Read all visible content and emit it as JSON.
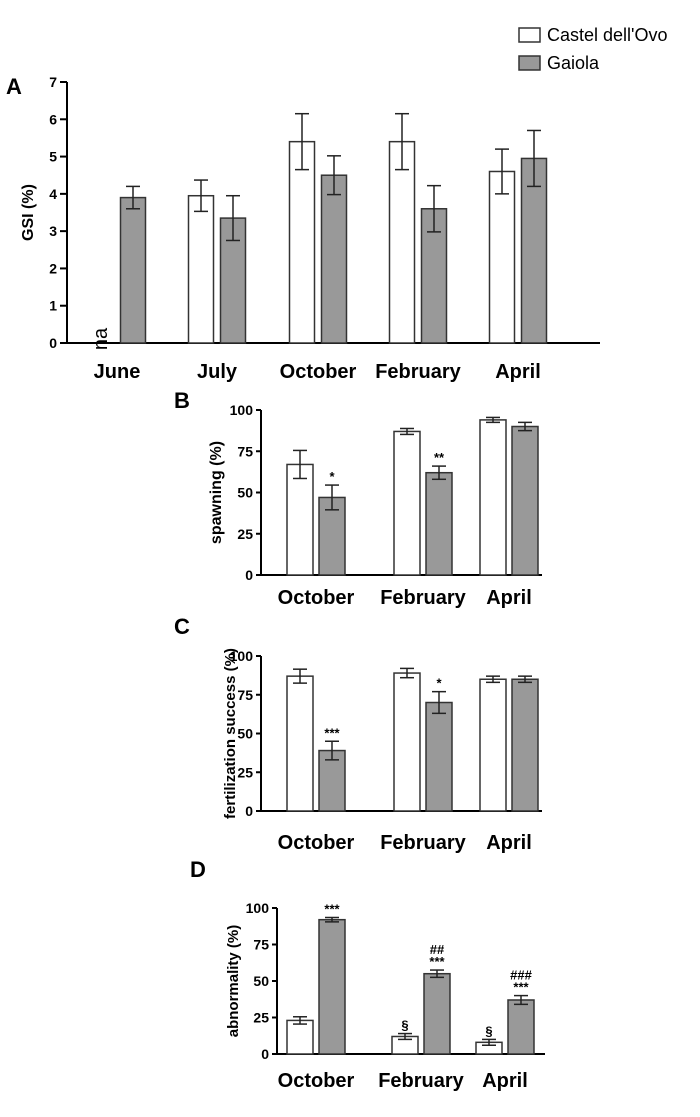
{
  "legend": [
    {
      "label": "Castel dell'Ovo",
      "color": "#ffffff"
    },
    {
      "label": "Gaiola",
      "color": "#999999"
    }
  ],
  "chart_data": [
    {
      "panel": "A",
      "type": "bar",
      "ylabel": "GSI (%)",
      "ylim": [
        0,
        7
      ],
      "yticks": [
        0,
        1,
        2,
        3,
        4,
        5,
        6,
        7
      ],
      "categories": [
        "June",
        "July",
        "October",
        "February",
        "April"
      ],
      "series": [
        {
          "name": "Castel dell'Ovo",
          "values": [
            null,
            3.95,
            5.4,
            5.4,
            4.6
          ],
          "errors": [
            null,
            0.42,
            0.75,
            0.75,
            0.6
          ],
          "labels": [
            "na",
            "",
            "",
            "",
            ""
          ]
        },
        {
          "name": "Gaiola",
          "values": [
            3.9,
            3.35,
            4.5,
            3.6,
            4.95
          ],
          "errors": [
            0.3,
            0.6,
            0.52,
            0.62,
            0.75
          ],
          "labels": [
            "",
            "",
            "",
            "",
            ""
          ]
        }
      ]
    },
    {
      "panel": "B",
      "type": "bar",
      "ylabel": "spawning (%)",
      "ylim": [
        0,
        100
      ],
      "yticks": [
        0,
        25,
        50,
        75,
        100
      ],
      "categories": [
        "October",
        "February",
        "April"
      ],
      "series": [
        {
          "name": "Castel dell'Ovo",
          "values": [
            67,
            87,
            94
          ],
          "errors": [
            8.5,
            1.8,
            1.5
          ],
          "labels": [
            "",
            "",
            ""
          ]
        },
        {
          "name": "Gaiola",
          "values": [
            47,
            62,
            90
          ],
          "errors": [
            7.5,
            4,
            2.5
          ],
          "labels": [
            "*",
            "**",
            ""
          ]
        }
      ]
    },
    {
      "panel": "C",
      "type": "bar",
      "ylabel": "fertilization success (%)",
      "ylim": [
        0,
        100
      ],
      "yticks": [
        0,
        25,
        50,
        75,
        100
      ],
      "categories": [
        "October",
        "February",
        "April"
      ],
      "series": [
        {
          "name": "Castel dell'Ovo",
          "values": [
            87,
            89,
            85
          ],
          "errors": [
            4.5,
            3,
            2
          ],
          "labels": [
            "",
            "",
            ""
          ]
        },
        {
          "name": "Gaiola",
          "values": [
            39,
            70,
            85
          ],
          "errors": [
            6,
            7,
            2
          ],
          "labels": [
            "***",
            "*",
            ""
          ]
        }
      ]
    },
    {
      "panel": "D",
      "type": "bar",
      "ylabel": "abnormality (%)",
      "ylim": [
        0,
        100
      ],
      "yticks": [
        0,
        25,
        50,
        75,
        100
      ],
      "categories": [
        "October",
        "February",
        "April"
      ],
      "series": [
        {
          "name": "Castel dell'Ovo",
          "values": [
            23,
            12,
            8
          ],
          "errors": [
            2.5,
            2,
            2
          ],
          "labels": [
            "",
            "§",
            "§"
          ]
        },
        {
          "name": "Gaiola",
          "values": [
            92,
            55,
            37
          ],
          "errors": [
            1.5,
            2.5,
            3
          ],
          "labels": [
            "***",
            "##|***",
            "###|***"
          ]
        }
      ]
    }
  ]
}
